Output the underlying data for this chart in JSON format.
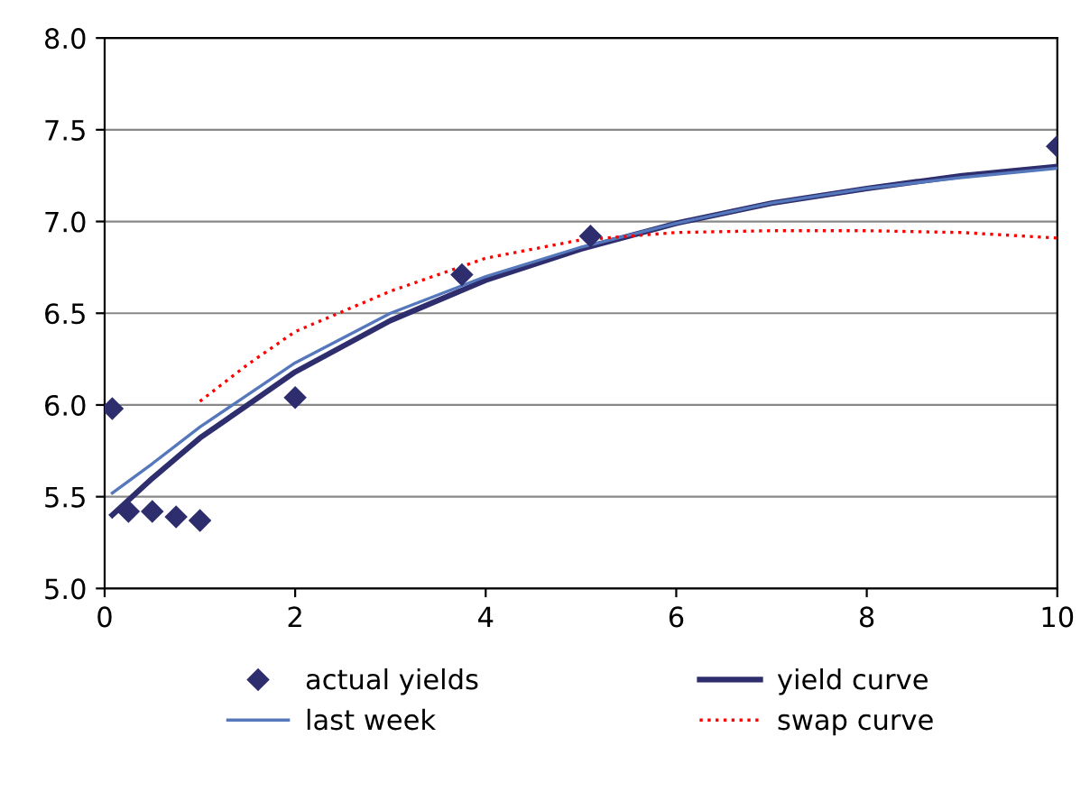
{
  "chart_data": {
    "type": "line",
    "xlim": [
      0,
      10
    ],
    "xticks": [
      0,
      2,
      4,
      6,
      8,
      10
    ],
    "ylim": [
      5.0,
      8.0
    ],
    "yticks": [
      {
        "value": 5.0,
        "label": "5.0"
      },
      {
        "value": 5.5,
        "label": "5.5"
      },
      {
        "value": 6.0,
        "label": "6.0"
      },
      {
        "value": 6.5,
        "label": "6.5"
      },
      {
        "value": 7.0,
        "label": "7.0"
      },
      {
        "value": 7.5,
        "label": "7.5"
      },
      {
        "value": 8.0,
        "label": "8.0"
      }
    ],
    "grid": "y",
    "legend": "bottom",
    "series": [
      {
        "name": "actual yields",
        "type": "scatter",
        "marker": "diamond",
        "color": "#2e2e6e",
        "x": [
          0.08,
          0.25,
          0.5,
          0.75,
          1.0,
          2.0,
          3.75,
          5.1,
          10
        ],
        "values": [
          5.98,
          5.42,
          5.42,
          5.39,
          5.37,
          6.04,
          6.71,
          6.92,
          7.41
        ]
      },
      {
        "name": "yield curve",
        "line_style": "solid",
        "color": "#2e2e6e",
        "x": [
          0.08,
          0.5,
          1,
          1.5,
          2,
          3,
          4,
          5,
          6,
          7,
          8,
          9,
          10
        ],
        "values": [
          5.4,
          5.6,
          5.82,
          6.0,
          6.18,
          6.46,
          6.68,
          6.85,
          6.99,
          7.1,
          7.18,
          7.25,
          7.3
        ]
      },
      {
        "name": "last week",
        "line_style": "solid",
        "color": "#5577bb",
        "x": [
          0.08,
          0.5,
          1,
          2,
          3,
          4,
          5,
          6,
          7,
          8,
          9,
          10
        ],
        "values": [
          5.52,
          5.68,
          5.88,
          6.23,
          6.5,
          6.7,
          6.86,
          6.99,
          7.1,
          7.18,
          7.24,
          7.29
        ]
      },
      {
        "name": "swap curve",
        "line_style": "dotted",
        "color": "#ff0000",
        "x": [
          1,
          1.5,
          2,
          3,
          4,
          5,
          6,
          7,
          8,
          9,
          10
        ],
        "values": [
          6.02,
          6.22,
          6.4,
          6.62,
          6.8,
          6.9,
          6.94,
          6.95,
          6.95,
          6.94,
          6.91
        ]
      }
    ]
  }
}
